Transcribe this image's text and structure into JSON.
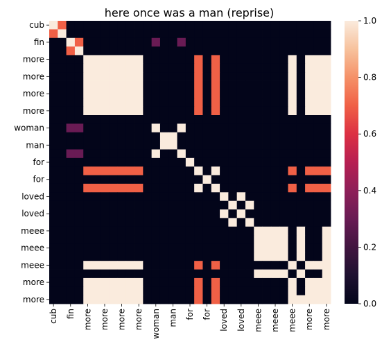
{
  "chart_data": {
    "type": "heatmap",
    "title": "here once was a man (reprise)",
    "xlabel": "",
    "ylabel": "",
    "row_labels": [
      "cub",
      "",
      "fin",
      "",
      "more",
      "",
      "more",
      "",
      "more",
      "",
      "more",
      "",
      "woman",
      "",
      "man",
      "",
      "for",
      "",
      "for",
      "",
      "loved",
      "",
      "loved",
      "",
      "meee",
      "",
      "meee",
      "",
      "meee",
      "",
      "more",
      "",
      "more"
    ],
    "col_labels": [
      "cub",
      "",
      "fin",
      "",
      "more",
      "",
      "more",
      "",
      "more",
      "",
      "more",
      "",
      "woman",
      "",
      "man",
      "",
      "for",
      "",
      "for",
      "",
      "loved",
      "",
      "loved",
      "",
      "meee",
      "",
      "meee",
      "",
      "meee",
      "",
      "more",
      "",
      "more"
    ],
    "colorbar": {
      "ticks": [
        0.0,
        0.2,
        0.4,
        0.6,
        0.8,
        1.0
      ],
      "tick_labels": [
        "0.0",
        "0.2",
        "0.4",
        "0.6",
        "0.8",
        "1.0"
      ],
      "vmin": 0,
      "vmax": 1
    },
    "colormap": "rocket",
    "matrix": [
      [
        1,
        0.7,
        0,
        0,
        0,
        0,
        0,
        0,
        0,
        0,
        0,
        0,
        0,
        0,
        0,
        0,
        0,
        0,
        0,
        0,
        0,
        0,
        0,
        0,
        0,
        0,
        0,
        0,
        0,
        0,
        0,
        0,
        0
      ],
      [
        0.7,
        1,
        0,
        0,
        0,
        0,
        0,
        0,
        0,
        0,
        0,
        0,
        0,
        0,
        0,
        0,
        0,
        0,
        0,
        0,
        0,
        0,
        0,
        0,
        0,
        0,
        0,
        0,
        0,
        0,
        0,
        0,
        0
      ],
      [
        0,
        0,
        1,
        0.7,
        0,
        0,
        0,
        0,
        0,
        0,
        0,
        0,
        0.3,
        0,
        0,
        0.3,
        0,
        0,
        0,
        0,
        0,
        0,
        0,
        0,
        0,
        0,
        0,
        0,
        0,
        0,
        0,
        0,
        0
      ],
      [
        0,
        0,
        0.7,
        1,
        0,
        0,
        0,
        0,
        0,
        0,
        0,
        0,
        0,
        0,
        0,
        0,
        0,
        0,
        0,
        0,
        0,
        0,
        0,
        0,
        0,
        0,
        0,
        0,
        0,
        0,
        0,
        0,
        0
      ],
      [
        0,
        0,
        0,
        0,
        1,
        1,
        1,
        1,
        1,
        1,
        1,
        0,
        0,
        0,
        0,
        0,
        0,
        0.7,
        0,
        0.7,
        0,
        0,
        0,
        0,
        0,
        0,
        0,
        0,
        1,
        0,
        1,
        1,
        1
      ],
      [
        0,
        0,
        0,
        0,
        1,
        1,
        1,
        1,
        1,
        1,
        1,
        0,
        0,
        0,
        0,
        0,
        0,
        0.7,
        0,
        0.7,
        0,
        0,
        0,
        0,
        0,
        0,
        0,
        0,
        1,
        0,
        1,
        1,
        1
      ],
      [
        0,
        0,
        0,
        0,
        1,
        1,
        1,
        1,
        1,
        1,
        1,
        0,
        0,
        0,
        0,
        0,
        0,
        0.7,
        0,
        0.7,
        0,
        0,
        0,
        0,
        0,
        0,
        0,
        0,
        1,
        0,
        1,
        1,
        1
      ],
      [
        0,
        0,
        0,
        0,
        1,
        1,
        1,
        1,
        1,
        1,
        1,
        0,
        0,
        0,
        0,
        0,
        0,
        0.7,
        0,
        0.7,
        0,
        0,
        0,
        0,
        0,
        0,
        0,
        0,
        1,
        0,
        1,
        1,
        1
      ],
      [
        0,
        0,
        0,
        0,
        1,
        1,
        1,
        1,
        1,
        1,
        1,
        0,
        0,
        0,
        0,
        0,
        0,
        0.7,
        0,
        0.7,
        0,
        0,
        0,
        0,
        0,
        0,
        0,
        0,
        1,
        0,
        1,
        1,
        1
      ],
      [
        0,
        0,
        0,
        0,
        1,
        1,
        1,
        1,
        1,
        1,
        1,
        0,
        0,
        0,
        0,
        0,
        0,
        0.7,
        0,
        0.7,
        0,
        0,
        0,
        0,
        0,
        0,
        0,
        0,
        1,
        0,
        1,
        1,
        1
      ],
      [
        0,
        0,
        0,
        0,
        1,
        1,
        1,
        1,
        1,
        1,
        1,
        0,
        0,
        0,
        0,
        0,
        0,
        0.7,
        0,
        0.7,
        0,
        0,
        0,
        0,
        0,
        0,
        0,
        0,
        1,
        0,
        1,
        1,
        1
      ],
      [
        0,
        0,
        0,
        0,
        0,
        0,
        0,
        0,
        0,
        0,
        0,
        0,
        0,
        0,
        0,
        0,
        0,
        0,
        0,
        0,
        0,
        0,
        0,
        0,
        0,
        0,
        0,
        0,
        0,
        0,
        0,
        0,
        0
      ],
      [
        0,
        0,
        0.3,
        0.3,
        0,
        0,
        0,
        0,
        0,
        0,
        0,
        0,
        1,
        0,
        0,
        1,
        0,
        0,
        0,
        0,
        0,
        0,
        0,
        0,
        0,
        0,
        0,
        0,
        0,
        0,
        0,
        0,
        0
      ],
      [
        0,
        0,
        0,
        0,
        0,
        0,
        0,
        0,
        0,
        0,
        0,
        0,
        0,
        1,
        1,
        0,
        0,
        0,
        0,
        0,
        0,
        0,
        0,
        0,
        0,
        0,
        0,
        0,
        0,
        0,
        0,
        0,
        0
      ],
      [
        0,
        0,
        0,
        0,
        0,
        0,
        0,
        0,
        0,
        0,
        0,
        0,
        0,
        1,
        1,
        0,
        0,
        0,
        0,
        0,
        0,
        0,
        0,
        0,
        0,
        0,
        0,
        0,
        0,
        0,
        0,
        0,
        0
      ],
      [
        0,
        0,
        0.3,
        0.3,
        0,
        0,
        0,
        0,
        0,
        0,
        0,
        0,
        1,
        0,
        0,
        1,
        0,
        0,
        0,
        0,
        0,
        0,
        0,
        0,
        0,
        0,
        0,
        0,
        0,
        0,
        0,
        0,
        0
      ],
      [
        0,
        0,
        0,
        0,
        0,
        0,
        0,
        0,
        0,
        0,
        0,
        0,
        0,
        0,
        0,
        0,
        1,
        0,
        0,
        0,
        0,
        0,
        0,
        0,
        0,
        0,
        0,
        0,
        0,
        0,
        0,
        0,
        0
      ],
      [
        0,
        0,
        0,
        0,
        0.7,
        0.7,
        0.7,
        0.7,
        0.7,
        0.7,
        0.7,
        0,
        0,
        0,
        0,
        0,
        0,
        1,
        0,
        1,
        0,
        0,
        0,
        0,
        0,
        0,
        0,
        0,
        0.7,
        0,
        0.7,
        0.7,
        0.7
      ],
      [
        0,
        0,
        0,
        0,
        0,
        0,
        0,
        0,
        0,
        0,
        0,
        0,
        0,
        0,
        0,
        0,
        0,
        0,
        1,
        0,
        0,
        0,
        0,
        0,
        0,
        0,
        0,
        0,
        0,
        0,
        0,
        0,
        0
      ],
      [
        0,
        0,
        0,
        0,
        0.7,
        0.7,
        0.7,
        0.7,
        0.7,
        0.7,
        0.7,
        0,
        0,
        0,
        0,
        0,
        0,
        1,
        0,
        1,
        0,
        0,
        0,
        0,
        0,
        0,
        0,
        0,
        0.7,
        0,
        0.7,
        0.7,
        0.7
      ],
      [
        0,
        0,
        0,
        0,
        0,
        0,
        0,
        0,
        0,
        0,
        0,
        0,
        0,
        0,
        0,
        0,
        0,
        0,
        0,
        0,
        1,
        0,
        1,
        0,
        0,
        0,
        0,
        0,
        0,
        0,
        0,
        0,
        0
      ],
      [
        0,
        0,
        0,
        0,
        0,
        0,
        0,
        0,
        0,
        0,
        0,
        0,
        0,
        0,
        0,
        0,
        0,
        0,
        0,
        0,
        0,
        1,
        0,
        1,
        0,
        0,
        0,
        0,
        0,
        0,
        0,
        0,
        0
      ],
      [
        0,
        0,
        0,
        0,
        0,
        0,
        0,
        0,
        0,
        0,
        0,
        0,
        0,
        0,
        0,
        0,
        0,
        0,
        0,
        0,
        1,
        0,
        1,
        0,
        0,
        0,
        0,
        0,
        0,
        0,
        0,
        0,
        0
      ],
      [
        0,
        0,
        0,
        0,
        0,
        0,
        0,
        0,
        0,
        0,
        0,
        0,
        0,
        0,
        0,
        0,
        0,
        0,
        0,
        0,
        0,
        1,
        0,
        1,
        0,
        0,
        0,
        0,
        0,
        0,
        0,
        0,
        0
      ],
      [
        0,
        0,
        0,
        0,
        0,
        0,
        0,
        0,
        0,
        0,
        0,
        0,
        0,
        0,
        0,
        0,
        0,
        0,
        0,
        0,
        0,
        0,
        0,
        0,
        1,
        1,
        1,
        1,
        0,
        1,
        0,
        0,
        1
      ],
      [
        0,
        0,
        0,
        0,
        0,
        0,
        0,
        0,
        0,
        0,
        0,
        0,
        0,
        0,
        0,
        0,
        0,
        0,
        0,
        0,
        0,
        0,
        0,
        0,
        1,
        1,
        1,
        1,
        0,
        1,
        0,
        0,
        1
      ],
      [
        0,
        0,
        0,
        0,
        0,
        0,
        0,
        0,
        0,
        0,
        0,
        0,
        0,
        0,
        0,
        0,
        0,
        0,
        0,
        0,
        0,
        0,
        0,
        0,
        1,
        1,
        1,
        1,
        0,
        1,
        0,
        0,
        1
      ],
      [
        0,
        0,
        0,
        0,
        0,
        0,
        0,
        0,
        0,
        0,
        0,
        0,
        0,
        0,
        0,
        0,
        0,
        0,
        0,
        0,
        0,
        0,
        0,
        0,
        1,
        1,
        1,
        1,
        0,
        1,
        0,
        0,
        1
      ],
      [
        0,
        0,
        0,
        0,
        1,
        1,
        1,
        1,
        1,
        1,
        1,
        0,
        0,
        0,
        0,
        0,
        0,
        0.7,
        0,
        0.7,
        0,
        0,
        0,
        0,
        0,
        0,
        0,
        0,
        1,
        0,
        1,
        1,
        1
      ],
      [
        0,
        0,
        0,
        0,
        0,
        0,
        0,
        0,
        0,
        0,
        0,
        0,
        0,
        0,
        0,
        0,
        0,
        0,
        0,
        0,
        0,
        0,
        0,
        0,
        1,
        1,
        1,
        1,
        0,
        1,
        0,
        0,
        1
      ],
      [
        0,
        0,
        0,
        0,
        1,
        1,
        1,
        1,
        1,
        1,
        1,
        0,
        0,
        0,
        0,
        0,
        0,
        0.7,
        0,
        0.7,
        0,
        0,
        0,
        0,
        0,
        0,
        0,
        0,
        1,
        0,
        1,
        1,
        1
      ],
      [
        0,
        0,
        0,
        0,
        1,
        1,
        1,
        1,
        1,
        1,
        1,
        0,
        0,
        0,
        0,
        0,
        0,
        0.7,
        0,
        0.7,
        0,
        0,
        0,
        0,
        0,
        0,
        0,
        0,
        1,
        0,
        1,
        1,
        1
      ],
      [
        0,
        0,
        0,
        0,
        1,
        1,
        1,
        1,
        1,
        1,
        1,
        0,
        0,
        0,
        0,
        0,
        0,
        0.7,
        0,
        0.7,
        0,
        0,
        0,
        0,
        0,
        0,
        0,
        0,
        1,
        1,
        1,
        1,
        1
      ]
    ]
  }
}
